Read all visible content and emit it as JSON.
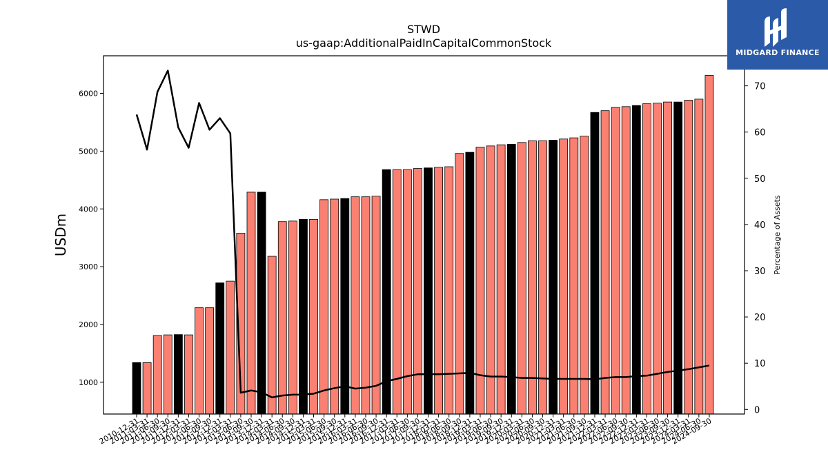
{
  "brand": {
    "name": "MIDGARD FINANCE",
    "bg_color": "#2b5ba8"
  },
  "chart_data": {
    "type": "bar",
    "title": "STWD",
    "subtitle": "us-gaap:AdditionalPaidInCapitalCommonStock",
    "ylabel": "USDm",
    "y2label": "Percentage of Assets",
    "ylim": [
      450,
      6650
    ],
    "y2lim": [
      -1,
      76.5
    ],
    "yticks": [
      1000,
      2000,
      3000,
      4000,
      5000,
      6000
    ],
    "y2ticks": [
      0,
      10,
      20,
      30,
      40,
      50,
      60,
      70
    ],
    "grid": false,
    "colors": {
      "annual_bar": "#000000",
      "quarter_bar": "#fa8072",
      "line": "#000000"
    },
    "categories": [
      "2010-12-31",
      "2011-03-31",
      "2011-06-30",
      "2011-09-30",
      "2011-12-31",
      "2012-03-31",
      "2012-06-30",
      "2012-09-30",
      "2012-12-31",
      "2013-03-31",
      "2013-06-30",
      "2013-09-30",
      "2013-12-31",
      "2014-03-31",
      "2014-06-30",
      "2014-09-30",
      "2014-12-31",
      "2015-03-31",
      "2015-06-30",
      "2015-09-30",
      "2015-12-31",
      "2016-03-31",
      "2016-06-30",
      "2016-09-30",
      "2016-12-31",
      "2017-03-31",
      "2017-06-30",
      "2017-09-30",
      "2017-12-31",
      "2018-03-31",
      "2018-06-30",
      "2018-09-30",
      "2018-12-31",
      "2019-03-31",
      "2019-06-30",
      "2019-09-30",
      "2019-12-31",
      "2020-03-31",
      "2020-06-30",
      "2020-09-30",
      "2020-12-31",
      "2021-03-31",
      "2021-06-30",
      "2021-09-30",
      "2021-12-31",
      "2022-03-31",
      "2022-06-30",
      "2022-09-30",
      "2022-12-31",
      "2023-03-31",
      "2023-06-30",
      "2023-09-30",
      "2023-12-31",
      "2024-03-31",
      "2024-06-30",
      "2024-09-30"
    ],
    "tick_labels": [
      "2010-12-31",
      "2011-03-31",
      "2011-06-30",
      "2011-09-30",
      "2011-12-31",
      "2012-03-31",
      "2012-06-30",
      "2012-09-30",
      "2012-12-31",
      "2013-03-31",
      "2013-06-30",
      "2013-09-30",
      "2013-12-31",
      "2014-03-31",
      "2014-06-30",
      "2014-09-30",
      "2014-12-31",
      "2015-03-31",
      "2015-06-30",
      "2015-09-30",
      "2015-12-31",
      "2016-03-31",
      "2016-06-30",
      "2016-09-30",
      "2016-12-31",
      "2017-03-31",
      "2017-06-30",
      "2017-09-30",
      "2017-12-31",
      "2018-03-31",
      "2018-06-30",
      "2018-09-30",
      "2018-12-31",
      "2019-03-31",
      "2019-06-30",
      "2019-09-30",
      "2019-12-31",
      "2020-03-31",
      "2020-06-30",
      "2020-09-30",
      "2020-12-31",
      "2021-03-31",
      "2021-06-30",
      "2021-09-30",
      "2021-12-31",
      "2022-03-31",
      "2022-06-30",
      "2022-09-30",
      "2022-12-31",
      "2023-03-31",
      "2023-06-30",
      "2023-09-30",
      "2023-12-31",
      "2024-03-31",
      "2024-06-30",
      "2024-09-30"
    ],
    "series": [
      {
        "values": [
          1340,
          1340,
          1810,
          1820,
          1825,
          1820,
          2290,
          2290,
          2720,
          2750,
          3580,
          4290,
          4290,
          3180,
          3780,
          3790,
          3820,
          3820,
          4160,
          4170,
          4180,
          4210,
          4210,
          4220,
          4680,
          4680,
          4680,
          4700,
          4710,
          4720,
          4730,
          4960,
          4980,
          5070,
          5090,
          5110,
          5120,
          5150,
          5180,
          5180,
          5190,
          5210,
          5230,
          5260,
          5670,
          5700,
          5760,
          5770,
          5790,
          5820,
          5830,
          5850,
          5850,
          5880,
          5900,
          6310
        ]
      },
      {
        "axis": "right",
        "values": [
          63.8,
          56.2,
          68.7,
          73.3,
          61.0,
          56.6,
          66.3,
          60.5,
          63.0,
          59.7,
          3.6,
          4.1,
          3.7,
          2.6,
          3.0,
          3.2,
          3.2,
          3.4,
          4.1,
          4.6,
          5.0,
          4.5,
          4.7,
          5.1,
          6.1,
          6.6,
          7.2,
          7.6,
          7.6,
          7.6,
          7.7,
          7.8,
          7.9,
          7.4,
          7.1,
          7.1,
          7.0,
          6.8,
          6.8,
          6.7,
          6.6,
          6.6,
          6.6,
          6.6,
          6.5,
          6.8,
          7.0,
          7.0,
          7.2,
          7.3,
          7.7,
          8.1,
          8.4,
          8.7,
          9.1,
          9.5
        ]
      }
    ]
  }
}
